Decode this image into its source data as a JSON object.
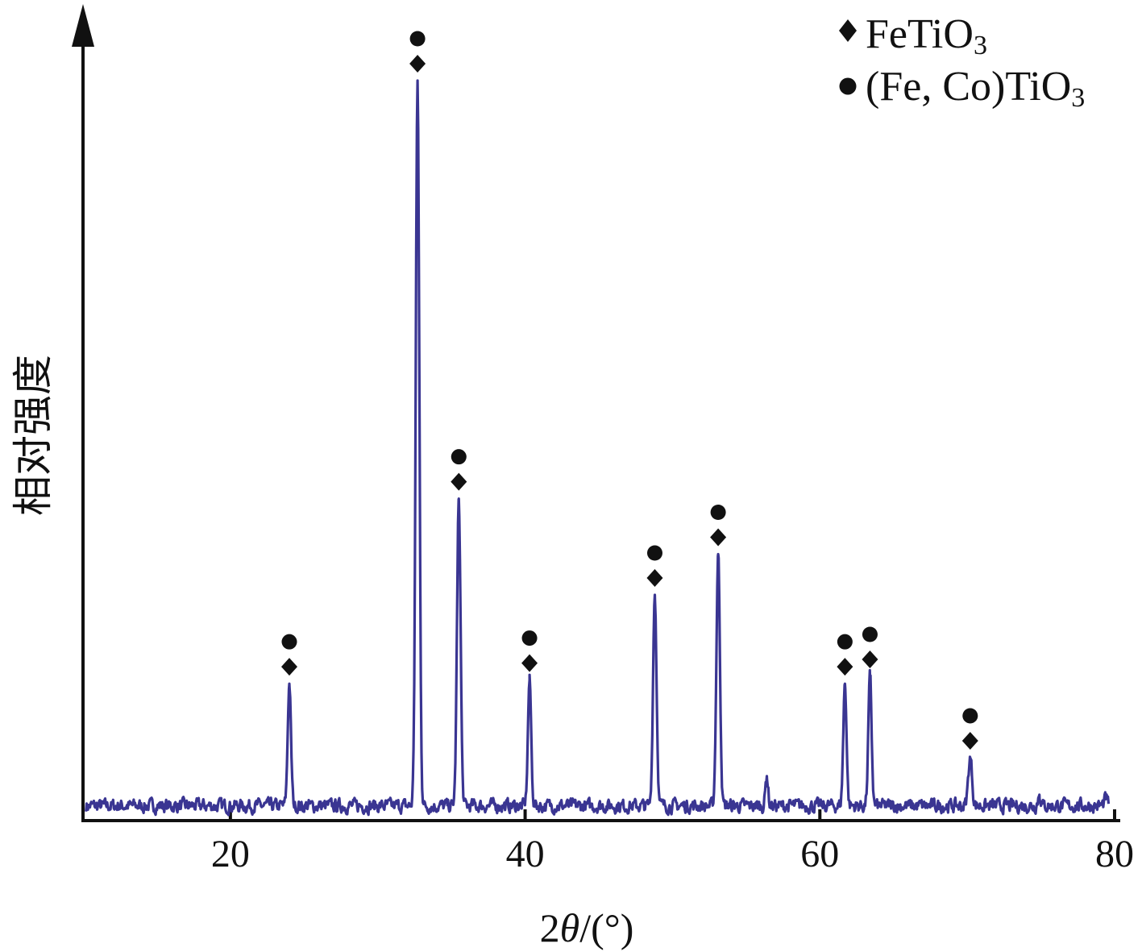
{
  "chart_data": {
    "type": "line",
    "xlabel_parts": [
      "2",
      "θ",
      "/(°)"
    ],
    "ylabel": "相对强度",
    "xlim": [
      10,
      80
    ],
    "ylim": [
      0,
      100
    ],
    "x_ticks": [
      20,
      40,
      60,
      80
    ],
    "x_tick_labels": [
      "20",
      "40",
      "60",
      "80"
    ],
    "line_color": "#3a3592",
    "baseline": 2,
    "noise_amplitude": 1.4,
    "peaks": [
      {
        "x": 24.0,
        "y": 18.5,
        "w": 0.11
      },
      {
        "x": 32.7,
        "y": 100,
        "w": 0.12
      },
      {
        "x": 35.5,
        "y": 43.5,
        "w": 0.12
      },
      {
        "x": 40.3,
        "y": 19.0,
        "w": 0.11
      },
      {
        "x": 48.8,
        "y": 30.5,
        "w": 0.12
      },
      {
        "x": 53.1,
        "y": 36.0,
        "w": 0.12
      },
      {
        "x": 56.4,
        "y": 6.0,
        "w": 0.09
      },
      {
        "x": 61.7,
        "y": 18.5,
        "w": 0.11
      },
      {
        "x": 63.4,
        "y": 19.5,
        "w": 0.11
      },
      {
        "x": 70.2,
        "y": 8.5,
        "w": 0.13
      },
      {
        "x": 74.9,
        "y": 3.5,
        "w": 0.1
      },
      {
        "x": 79.4,
        "y": 3.0,
        "w": 0.1
      }
    ],
    "phase_markers": [
      {
        "x": 24.0,
        "y": 18.5,
        "phases": [
          "FeTiO3",
          "(Fe, Co)TiO3"
        ]
      },
      {
        "x": 32.7,
        "y": 100,
        "phases": [
          "FeTiO3",
          "(Fe, Co)TiO3"
        ]
      },
      {
        "x": 35.5,
        "y": 43.5,
        "phases": [
          "FeTiO3",
          "(Fe, Co)TiO3"
        ]
      },
      {
        "x": 40.3,
        "y": 19.0,
        "phases": [
          "FeTiO3",
          "(Fe, Co)TiO3"
        ]
      },
      {
        "x": 48.8,
        "y": 30.5,
        "phases": [
          "FeTiO3",
          "(Fe, Co)TiO3"
        ]
      },
      {
        "x": 53.1,
        "y": 36.0,
        "phases": [
          "FeTiO3",
          "(Fe, Co)TiO3"
        ]
      },
      {
        "x": 61.7,
        "y": 18.5,
        "phases": [
          "FeTiO3",
          "(Fe, Co)TiO3"
        ]
      },
      {
        "x": 63.4,
        "y": 19.5,
        "phases": [
          "FeTiO3",
          "(Fe, Co)TiO3"
        ]
      },
      {
        "x": 70.2,
        "y": 8.5,
        "phases": [
          "FeTiO3",
          "(Fe, Co)TiO3"
        ]
      }
    ],
    "legend": {
      "position": "top-right",
      "entries": [
        {
          "marker": "diamond",
          "label_main": "FeTiO",
          "label_sub": "3",
          "label_prefix": ""
        },
        {
          "marker": "circle",
          "label_main": "(Fe, Co)TiO",
          "label_sub": "3",
          "label_prefix": ""
        }
      ]
    },
    "grid": false
  }
}
